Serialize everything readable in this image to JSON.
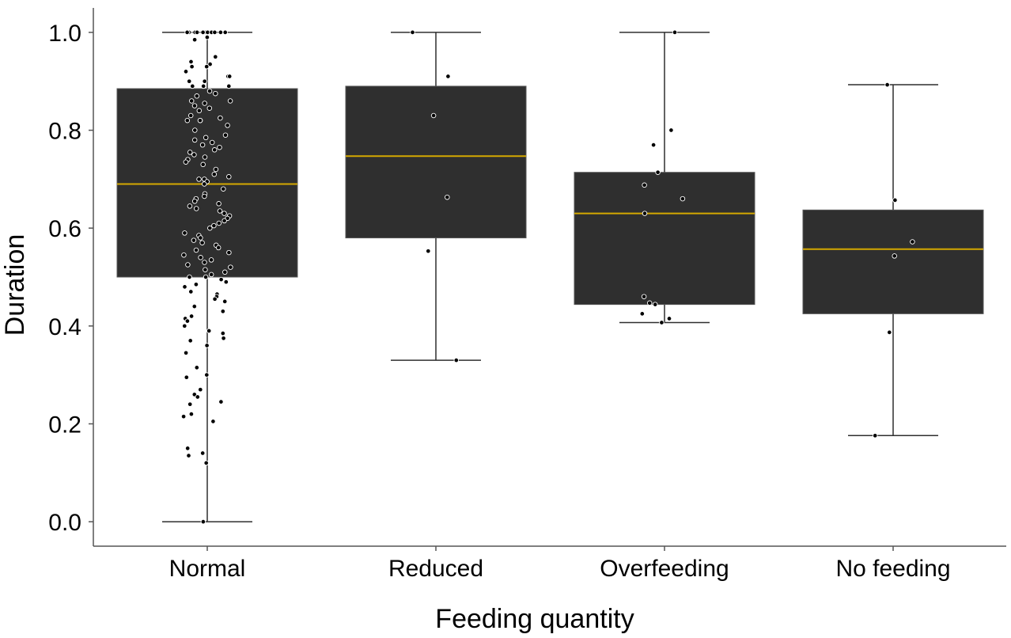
{
  "chart_data": {
    "type": "box",
    "title": "",
    "xlabel": "Feeding quantity",
    "ylabel": "Duration",
    "ylim": [
      -0.05,
      1.05
    ],
    "yticks": [
      0.0,
      0.2,
      0.4,
      0.6,
      0.8,
      1.0
    ],
    "ytick_labels": [
      "0.0",
      "0.2",
      "0.4",
      "0.6",
      "0.8",
      "1.0"
    ],
    "grid": false,
    "colors": {
      "box": "#2f2f2f",
      "median": "#d4a800",
      "whisker": "#2f2f2f",
      "axis": "#555555"
    },
    "categories": [
      "Normal",
      "Reduced",
      "Overfeeding",
      "No feeding"
    ],
    "boxes": [
      {
        "category": "Normal",
        "whislo": 0.0,
        "q1": 0.5,
        "median": 0.69,
        "q3": 0.885,
        "whishi": 1.0
      },
      {
        "category": "Reduced",
        "whislo": 0.33,
        "q1": 0.58,
        "median": 0.747,
        "q3": 0.89,
        "whishi": 1.0
      },
      {
        "category": "Overfeeding",
        "whislo": 0.407,
        "q1": 0.444,
        "median": 0.63,
        "q3": 0.714,
        "whishi": 1.0
      },
      {
        "category": "No feeding",
        "whislo": 0.176,
        "q1": 0.425,
        "median": 0.557,
        "q3": 0.637,
        "whishi": 0.893
      }
    ],
    "points": [
      [
        0.0,
        1.0
      ],
      [
        0.0,
        1.0
      ],
      [
        0.0,
        1.0
      ],
      [
        0.0,
        1.0
      ],
      [
        0.0,
        1.0
      ],
      [
        0.0,
        1.0
      ],
      [
        0.0,
        1.0
      ],
      [
        0.0,
        1.0
      ],
      [
        0.0,
        1.0
      ],
      [
        0.0,
        1.0
      ],
      [
        0.0,
        1.0
      ],
      [
        0.0,
        1.0
      ],
      [
        0.0,
        1.0
      ],
      [
        0.0,
        1.0
      ],
      [
        0.0,
        0.99
      ],
      [
        0.0,
        0.985
      ],
      [
        0.0,
        0.95
      ],
      [
        0.0,
        0.94
      ],
      [
        0.0,
        0.935
      ],
      [
        0.0,
        0.93
      ],
      [
        0.0,
        0.93
      ],
      [
        0.0,
        0.92
      ],
      [
        0.0,
        0.91
      ],
      [
        0.0,
        0.91
      ],
      [
        0.0,
        0.9
      ],
      [
        0.0,
        0.9
      ],
      [
        0.0,
        0.89
      ],
      [
        0.0,
        0.89
      ],
      [
        0.0,
        0.89
      ],
      [
        0.0,
        0.88
      ],
      [
        0.0,
        0.875
      ],
      [
        0.0,
        0.87
      ],
      [
        0.0,
        0.86
      ],
      [
        0.0,
        0.86
      ],
      [
        0.0,
        0.855
      ],
      [
        0.0,
        0.85
      ],
      [
        0.0,
        0.845
      ],
      [
        0.0,
        0.84
      ],
      [
        0.0,
        0.83
      ],
      [
        0.0,
        0.825
      ],
      [
        0.0,
        0.82
      ],
      [
        0.0,
        0.82
      ],
      [
        0.0,
        0.82
      ],
      [
        0.0,
        0.81
      ],
      [
        0.0,
        0.8
      ],
      [
        0.0,
        0.79
      ],
      [
        0.0,
        0.785
      ],
      [
        0.0,
        0.78
      ],
      [
        0.0,
        0.775
      ],
      [
        0.0,
        0.77
      ],
      [
        0.0,
        0.765
      ],
      [
        0.0,
        0.76
      ],
      [
        0.0,
        0.755
      ],
      [
        0.0,
        0.75
      ],
      [
        0.0,
        0.745
      ],
      [
        0.0,
        0.74
      ],
      [
        0.0,
        0.735
      ],
      [
        0.0,
        0.73
      ],
      [
        0.0,
        0.72
      ],
      [
        0.0,
        0.71
      ],
      [
        0.0,
        0.705
      ],
      [
        0.0,
        0.7
      ],
      [
        0.0,
        0.7
      ],
      [
        0.0,
        0.695
      ],
      [
        0.0,
        0.69
      ],
      [
        0.0,
        0.68
      ],
      [
        0.0,
        0.67
      ],
      [
        0.0,
        0.665
      ],
      [
        0.0,
        0.66
      ],
      [
        0.0,
        0.655
      ],
      [
        0.0,
        0.65
      ],
      [
        0.0,
        0.645
      ],
      [
        0.0,
        0.64
      ],
      [
        0.0,
        0.635
      ],
      [
        0.0,
        0.63
      ],
      [
        0.0,
        0.625
      ],
      [
        0.0,
        0.62
      ],
      [
        0.0,
        0.615
      ],
      [
        0.0,
        0.61
      ],
      [
        0.0,
        0.605
      ],
      [
        0.0,
        0.6
      ],
      [
        0.0,
        0.59
      ],
      [
        0.0,
        0.585
      ],
      [
        0.0,
        0.58
      ],
      [
        0.0,
        0.575
      ],
      [
        0.0,
        0.57
      ],
      [
        0.0,
        0.565
      ],
      [
        0.0,
        0.56
      ],
      [
        0.0,
        0.555
      ],
      [
        0.0,
        0.55
      ],
      [
        0.0,
        0.545
      ],
      [
        0.0,
        0.54
      ],
      [
        0.0,
        0.535
      ],
      [
        0.0,
        0.53
      ],
      [
        0.0,
        0.525
      ],
      [
        0.0,
        0.52
      ],
      [
        0.0,
        0.515
      ],
      [
        0.0,
        0.51
      ],
      [
        0.0,
        0.505
      ],
      [
        0.0,
        0.5
      ],
      [
        0.0,
        0.5
      ],
      [
        0.0,
        0.495
      ],
      [
        0.0,
        0.49
      ],
      [
        0.0,
        0.485
      ],
      [
        0.0,
        0.48
      ],
      [
        0.0,
        0.47
      ],
      [
        0.0,
        0.465
      ],
      [
        0.0,
        0.46
      ],
      [
        0.0,
        0.455
      ],
      [
        0.0,
        0.45
      ],
      [
        0.0,
        0.44
      ],
      [
        0.0,
        0.43
      ],
      [
        0.0,
        0.42
      ],
      [
        0.0,
        0.415
      ],
      [
        0.0,
        0.41
      ],
      [
        0.0,
        0.4
      ],
      [
        0.0,
        0.39
      ],
      [
        0.0,
        0.385
      ],
      [
        0.0,
        0.375
      ],
      [
        0.0,
        0.37
      ],
      [
        0.0,
        0.36
      ],
      [
        0.0,
        0.345
      ],
      [
        0.0,
        0.315
      ],
      [
        0.0,
        0.3
      ],
      [
        0.0,
        0.295
      ],
      [
        0.0,
        0.27
      ],
      [
        0.0,
        0.26
      ],
      [
        0.0,
        0.255
      ],
      [
        0.0,
        0.245
      ],
      [
        0.0,
        0.24
      ],
      [
        0.0,
        0.22
      ],
      [
        0.0,
        0.215
      ],
      [
        0.0,
        0.205
      ],
      [
        0.0,
        0.15
      ],
      [
        0.0,
        0.14
      ],
      [
        0.0,
        0.135
      ],
      [
        0.0,
        0.12
      ],
      [
        0.0,
        0.0
      ],
      [
        1.0,
        1.0
      ],
      [
        1.0,
        0.91
      ],
      [
        1.0,
        0.83
      ],
      [
        1.0,
        0.663
      ],
      [
        1.0,
        0.553
      ],
      [
        1.0,
        0.33
      ],
      [
        2.0,
        1.0
      ],
      [
        2.0,
        0.8
      ],
      [
        2.0,
        0.77
      ],
      [
        2.0,
        0.714
      ],
      [
        2.0,
        0.688
      ],
      [
        2.0,
        0.66
      ],
      [
        2.0,
        0.63
      ],
      [
        2.0,
        0.46
      ],
      [
        2.0,
        0.447
      ],
      [
        2.0,
        0.444
      ],
      [
        2.0,
        0.425
      ],
      [
        2.0,
        0.415
      ],
      [
        2.0,
        0.407
      ],
      [
        3.0,
        0.893
      ],
      [
        3.0,
        0.657
      ],
      [
        3.0,
        0.572
      ],
      [
        3.0,
        0.543
      ],
      [
        3.0,
        0.387
      ],
      [
        3.0,
        0.176
      ]
    ]
  }
}
